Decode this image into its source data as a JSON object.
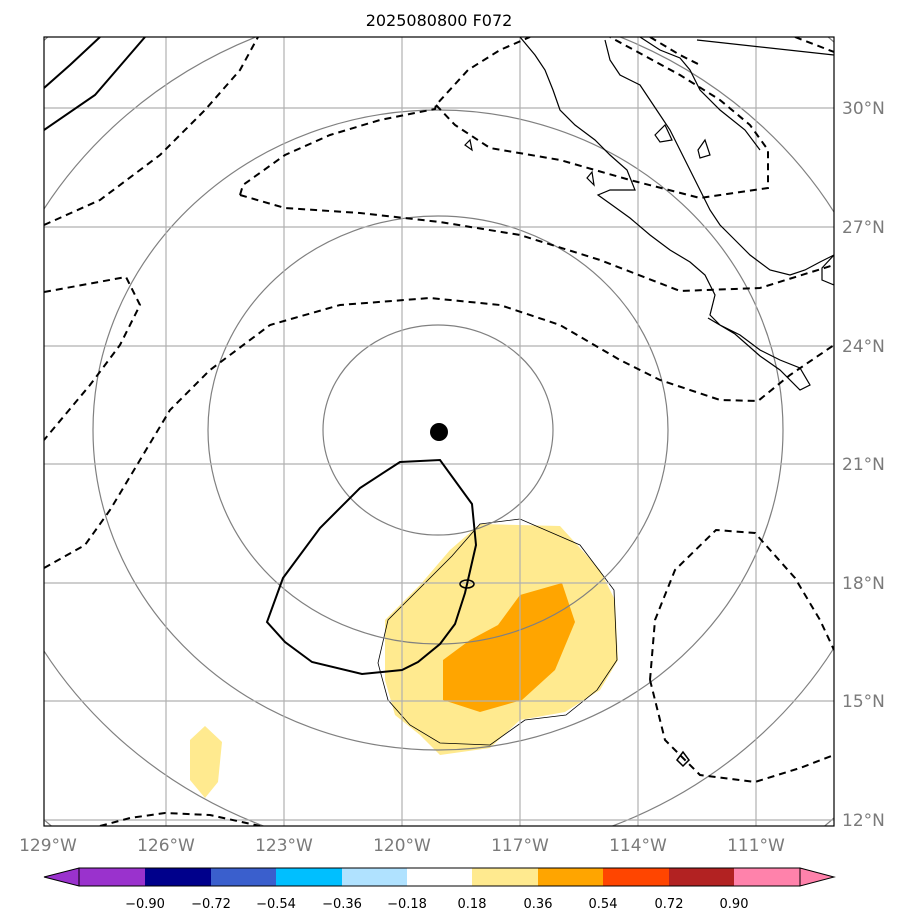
{
  "title": "2025080800 F072",
  "lon_labels": [
    "129°W",
    "126°W",
    "123°W",
    "120°W",
    "117°W",
    "114°W",
    "111°W"
  ],
  "lat_labels": [
    "30°N",
    "27°N",
    "24°N",
    "21°N",
    "18°N",
    "15°N",
    "12°N"
  ],
  "colorbar": {
    "ticks": [
      "−0.90",
      "−0.72",
      "−0.54",
      "−0.36",
      "−0.18",
      "0.18",
      "0.36",
      "0.54",
      "0.72",
      "0.90"
    ],
    "colors": [
      "#9a32cd",
      "#00008b",
      "#3a5fcd",
      "#00bfff",
      "#b0e2ff",
      "#ffffff",
      "#ffea8f",
      "#ffa500",
      "#ff4500",
      "#b22222",
      "#ff82ab"
    ]
  },
  "center_marker": {
    "lat": 21.8,
    "lon": -118.9
  }
}
